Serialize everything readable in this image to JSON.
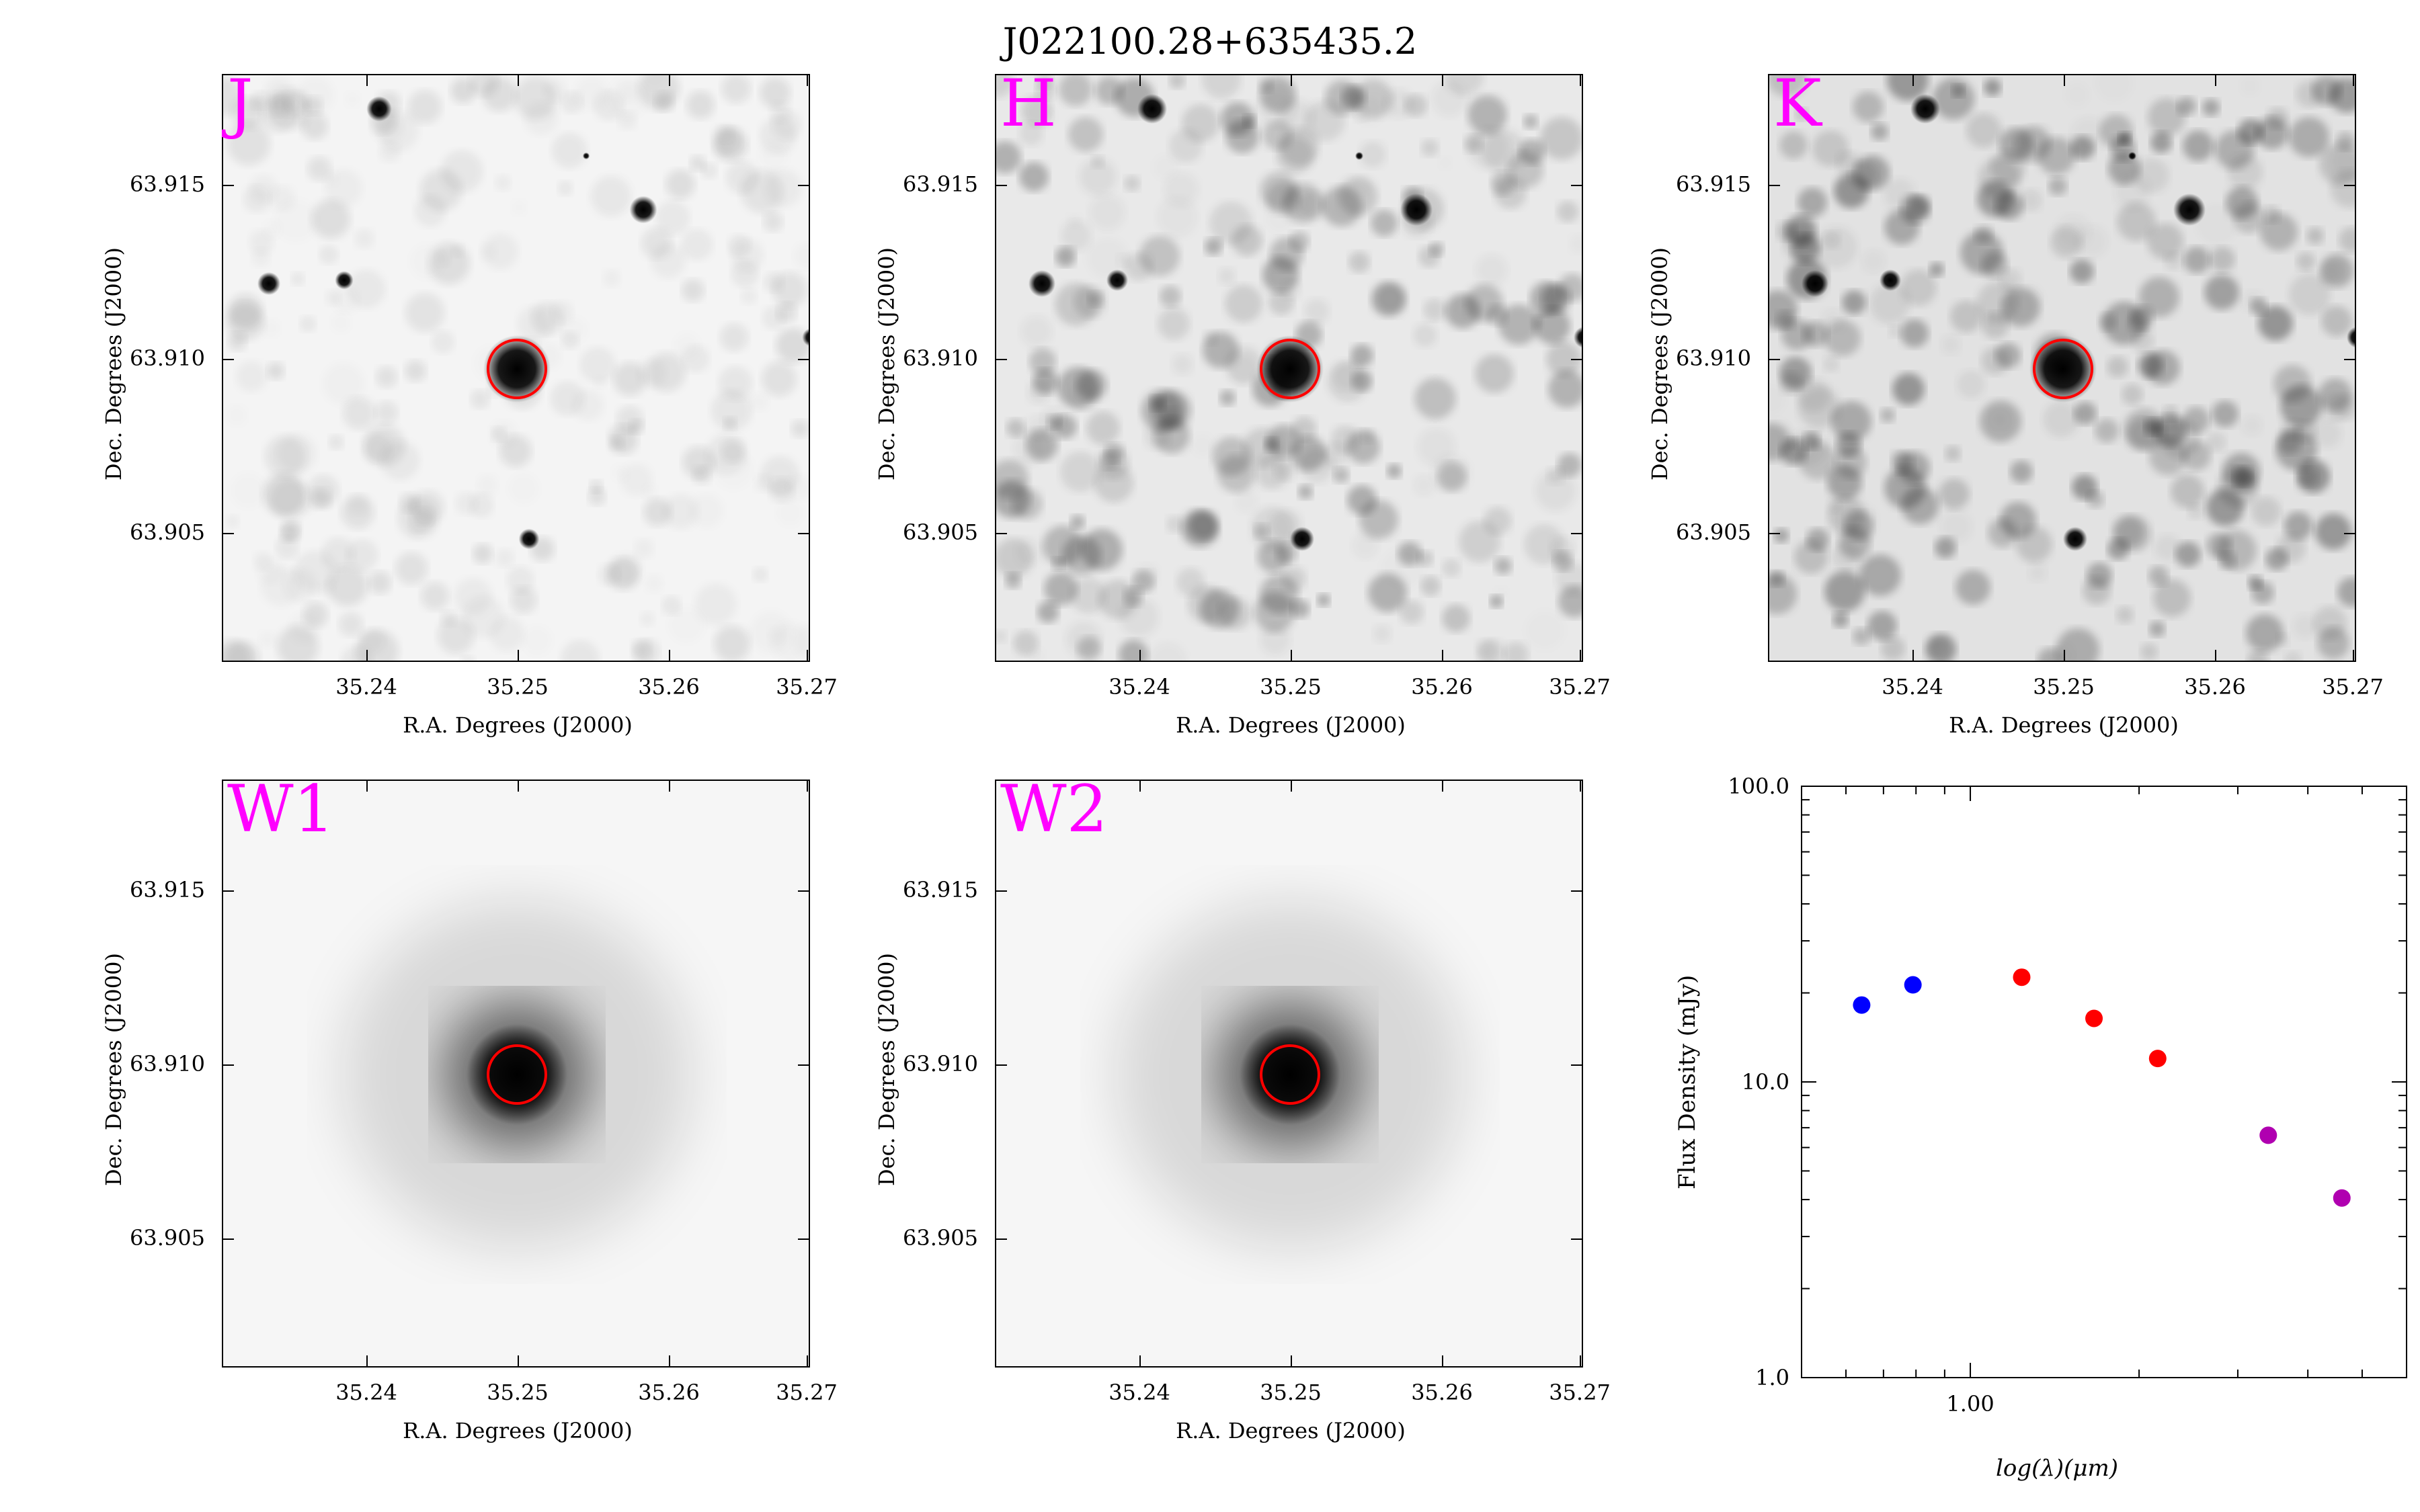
{
  "title": "J022100.28+635435.2",
  "image_panels": [
    {
      "band": "J",
      "background": "#f4f4f4"
    },
    {
      "band": "H",
      "background": "#e9e9e9"
    },
    {
      "band": "K",
      "background": "#e2e2e2"
    },
    {
      "band": "W1",
      "background": "#f6f6f6"
    },
    {
      "band": "W2",
      "background": "#f6f6f6"
    }
  ],
  "image_axes": {
    "xlabel": "R.A. Degrees (J2000)",
    "ylabel": "Dec. Degrees (J2000)",
    "xticks": [
      "35.24",
      "35.25",
      "35.26",
      "35.27"
    ],
    "yticks": [
      "63.915",
      "63.910",
      "63.905"
    ]
  },
  "colors": {
    "band_label": "#ff00ff",
    "aperture": "#ff0000"
  },
  "chart_data": {
    "type": "scatter",
    "xlabel": "log(λ)(μm)",
    "ylabel": "Flux Density (mJy)",
    "yscale": "log",
    "xscale": "log",
    "ylim": [
      1.0,
      100.0
    ],
    "yticks": [
      "1.0",
      "10.0",
      "100.0"
    ],
    "xticks": [
      "1.00"
    ],
    "series": [
      {
        "color": "#0000ff",
        "x": [
          0.64,
          0.79
        ],
        "y": [
          18.2,
          21.3
        ]
      },
      {
        "color": "#ff0000",
        "x": [
          1.235,
          1.662,
          2.159
        ],
        "y": [
          22.6,
          16.4,
          12.0
        ]
      },
      {
        "color": "#b000b0",
        "x": [
          3.4,
          4.6
        ],
        "y": [
          6.6,
          4.05
        ]
      }
    ]
  }
}
